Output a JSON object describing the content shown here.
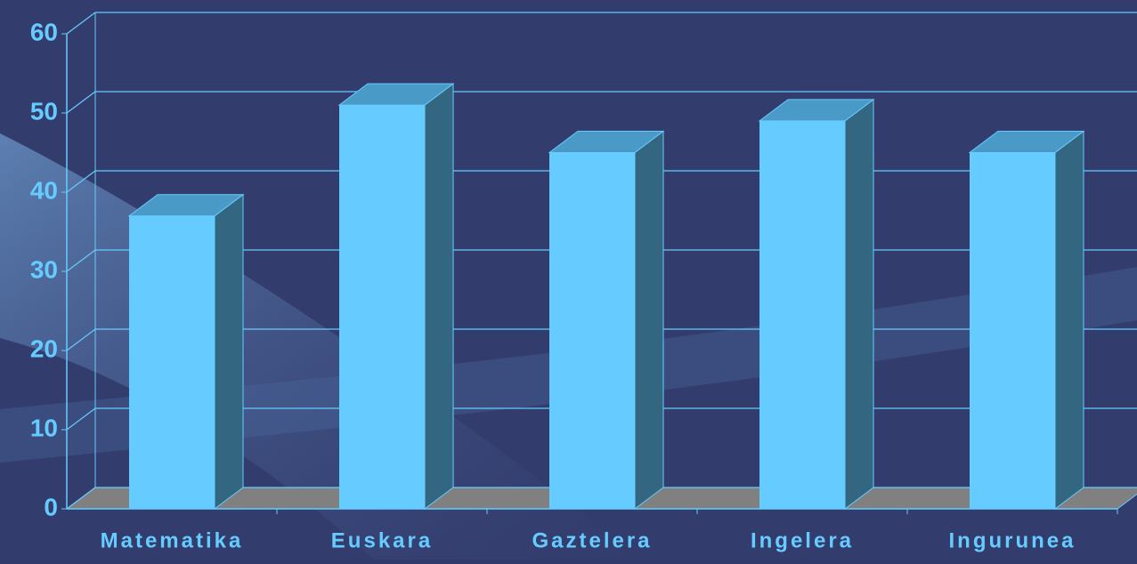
{
  "chart_data": {
    "type": "bar3d",
    "categories": [
      "Matematika",
      "Euskara",
      "Gaztelera",
      "Ingelera",
      "Ingurunea"
    ],
    "values": [
      37,
      51,
      45,
      49,
      45
    ],
    "color": "#66ccff",
    "ylim": [
      0,
      60
    ],
    "yticks": [
      0,
      10,
      20,
      30,
      40,
      50,
      60
    ],
    "grid": true
  }
}
